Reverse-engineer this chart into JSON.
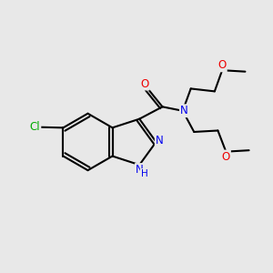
{
  "bg_color": "#e8e8e8",
  "bond_color": "#000000",
  "bond_width": 1.5,
  "atom_colors": {
    "C": "#000000",
    "N": "#0000ee",
    "O": "#ee0000",
    "Cl": "#00aa00",
    "H": "#0000ee"
  },
  "font_size": 8.5,
  "fig_size": [
    3.0,
    3.0
  ],
  "dpi": 100,
  "xlim": [
    0,
    10
  ],
  "ylim": [
    0,
    10
  ]
}
